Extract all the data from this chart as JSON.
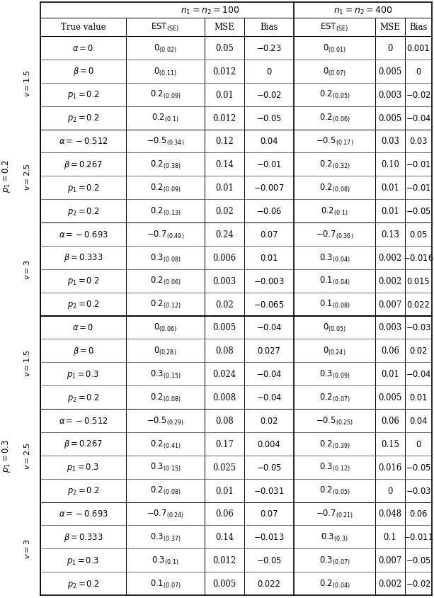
{
  "groups": [
    {
      "p1_label": "p_1 = 0.2",
      "subgroups": [
        {
          "v_label": "v = 1.5",
          "rows": [
            {
              "tv": "\\alpha = 0",
              "est1": "0_{(0.02)}",
              "mse1": "0.05",
              "bias1": "-0.23",
              "est2": "0_{(0.01)}",
              "mse2": "0",
              "bias2": "0.001"
            },
            {
              "tv": "\\beta = 0",
              "est1": "0_{(0.11)}",
              "mse1": "0.012",
              "bias1": "0",
              "est2": "0_{(0.07)}",
              "mse2": "0.005",
              "bias2": "0"
            },
            {
              "tv": "p_1 = 0.2",
              "est1": "0.2_{(0.09)}",
              "mse1": "0.01",
              "bias1": "-0.02",
              "est2": "0.2_{(0.05)}",
              "mse2": "0.003",
              "bias2": "-0.02"
            },
            {
              "tv": "p_2 = 0.2",
              "est1": "0.2_{(0.1)}",
              "mse1": "0.012",
              "bias1": "-0.05",
              "est2": "0.2_{(0.06)}",
              "mse2": "0.005",
              "bias2": "-0.04"
            }
          ]
        },
        {
          "v_label": "v = 2.5",
          "rows": [
            {
              "tv": "\\alpha = -0.512",
              "est1": "-0.5_{(0.34)}",
              "mse1": "0.12",
              "bias1": "0.04",
              "est2": "-0.5_{(0.17)}",
              "mse2": "0.03",
              "bias2": "0.03"
            },
            {
              "tv": "\\beta = 0.267",
              "est1": "0.2_{(0.38)}",
              "mse1": "0.14",
              "bias1": "-0.01",
              "est2": "0.2_{(0.32)}",
              "mse2": "0.10",
              "bias2": "-0.01"
            },
            {
              "tv": "p_1 = 0.2",
              "est1": "0.2_{(0.09)}",
              "mse1": "0.01",
              "bias1": "-0.007",
              "est2": "0.2_{(0.08)}",
              "mse2": "0.01",
              "bias2": "-0.01"
            },
            {
              "tv": "p_2 = 0.2",
              "est1": "0.2_{(0.13)}",
              "mse1": "0.02",
              "bias1": "-0.06",
              "est2": "0.2_{(0.1)}",
              "mse2": "0.01",
              "bias2": "-0.05"
            }
          ]
        },
        {
          "v_label": "v = 3",
          "rows": [
            {
              "tv": "\\alpha = -0.693",
              "est1": "-0.7_{(0.49)}",
              "mse1": "0.24",
              "bias1": "0.07",
              "est2": "-0.7_{(0.36)}",
              "mse2": "0.13",
              "bias2": "0.05"
            },
            {
              "tv": "\\beta = 0.333",
              "est1": "0.3_{(0.08)}",
              "mse1": "0.006",
              "bias1": "0.01",
              "est2": "0.3_{(0.04)}",
              "mse2": "0.002",
              "bias2": "-0.016"
            },
            {
              "tv": "p_1 = 0.2",
              "est1": "0.2_{(0.06)}",
              "mse1": "0.003",
              "bias1": "-0.003",
              "est2": "0.1_{(0.04)}",
              "mse2": "0.002",
              "bias2": "0.015"
            },
            {
              "tv": "p_2 = 0.2",
              "est1": "0.2_{(0.12)}",
              "mse1": "0.02",
              "bias1": "-0.065",
              "est2": "0.1_{(0.08)}",
              "mse2": "0.007",
              "bias2": "0.022"
            }
          ]
        }
      ]
    },
    {
      "p1_label": "p_1 = 0.3",
      "subgroups": [
        {
          "v_label": "v = 1.5",
          "rows": [
            {
              "tv": "\\alpha = 0",
              "est1": "0_{(0.06)}",
              "mse1": "0.005",
              "bias1": "-0.04",
              "est2": "0_{(0.05)}",
              "mse2": "0.003",
              "bias2": "-0.03"
            },
            {
              "tv": "\\beta = 0",
              "est1": "0_{(0.28)}",
              "mse1": "0.08",
              "bias1": "0.027",
              "est2": "0_{(0.24)}",
              "mse2": "0.06",
              "bias2": "0.02"
            },
            {
              "tv": "p_1 = 0.3",
              "est1": "0.3_{(0.15)}",
              "mse1": "0.024",
              "bias1": "-0.04",
              "est2": "0.3_{(0.09)}",
              "mse2": "0.01",
              "bias2": "-0.04"
            },
            {
              "tv": "p_2 = 0.2",
              "est1": "0.2_{(0.08)}",
              "mse1": "0.008",
              "bias1": "-0.04",
              "est2": "0.2_{(0.07)}",
              "mse2": "0.005",
              "bias2": "0.01"
            }
          ]
        },
        {
          "v_label": "v = 2.5",
          "rows": [
            {
              "tv": "\\alpha = -0.512",
              "est1": "-0.5_{(0.29)}",
              "mse1": "0.08",
              "bias1": "0.02",
              "est2": "-0.5_{(0.25)}",
              "mse2": "0.06",
              "bias2": "0.04"
            },
            {
              "tv": "\\beta = 0.267",
              "est1": "0.2_{(0.41)}",
              "mse1": "0.17",
              "bias1": "0.004",
              "est2": "0.2_{(0.39)}",
              "mse2": "0.15",
              "bias2": "0"
            },
            {
              "tv": "p_1 = 0.3",
              "est1": "0.3_{(0.15)}",
              "mse1": "0.025",
              "bias1": "-0.05",
              "est2": "0.3_{(0.12)}",
              "mse2": "0.016",
              "bias2": "-0.05"
            },
            {
              "tv": "p_2 = 0.2",
              "est1": "0.2_{(0.08)}",
              "mse1": "0.01",
              "bias1": "-0.031",
              "est2": "0.2_{(0.05)}",
              "mse2": "0",
              "bias2": "-0.03"
            }
          ]
        },
        {
          "v_label": "v = 3",
          "rows": [
            {
              "tv": "\\alpha = -0.693",
              "est1": "-0.7_{(0.24)}",
              "mse1": "0.06",
              "bias1": "0.07",
              "est2": "-0.7_{(0.21)}",
              "mse2": "0.048",
              "bias2": "0.06"
            },
            {
              "tv": "\\beta = 0.333",
              "est1": "0.3_{(0.37)}",
              "mse1": "0.14",
              "bias1": "-0.013",
              "est2": "0.3_{(0.3)}",
              "mse2": "0.1",
              "bias2": "-0.011"
            },
            {
              "tv": "p_1 = 0.3",
              "est1": "0.3_{(0.1)}",
              "mse1": "0.012",
              "bias1": "-0.05",
              "est2": "0.3_{(0.07)}",
              "mse2": "0.007",
              "bias2": "-0.05"
            },
            {
              "tv": "p_2 = 0.2",
              "est1": "0.1_{(0.07)}",
              "mse1": "0.005",
              "bias1": "0.022",
              "est2": "0.2_{(0.04)}",
              "mse2": "0.002",
              "bias2": "-0.02"
            }
          ]
        }
      ]
    }
  ]
}
